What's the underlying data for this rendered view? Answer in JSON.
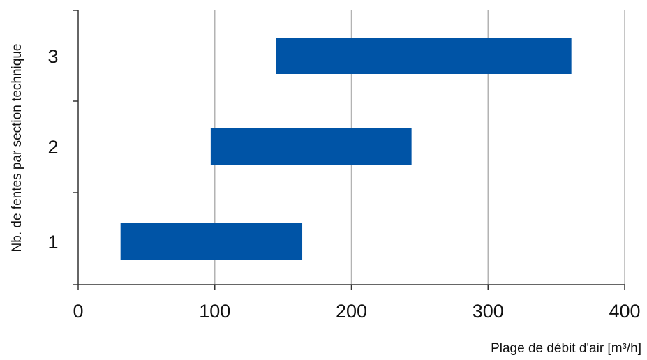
{
  "chart_data": {
    "type": "bar",
    "orientation": "horizontal",
    "subtype": "range",
    "categories": [
      "1",
      "2",
      "3"
    ],
    "series": [
      {
        "ranges": [
          [
            31,
            164
          ],
          [
            97,
            244
          ],
          [
            145,
            361
          ]
        ]
      }
    ],
    "xlabel": "Plage de débit d'air [m³/h]",
    "ylabel": "Nb. de fentes par section technique",
    "xlim": [
      0,
      400
    ],
    "xticks": [
      "0",
      "100",
      "200",
      "300",
      "400"
    ],
    "grid": "vertical",
    "legend": "none",
    "colors": {
      "bar": "#0054a6",
      "grid": "#b3b3b3",
      "axis": "#333333"
    }
  }
}
